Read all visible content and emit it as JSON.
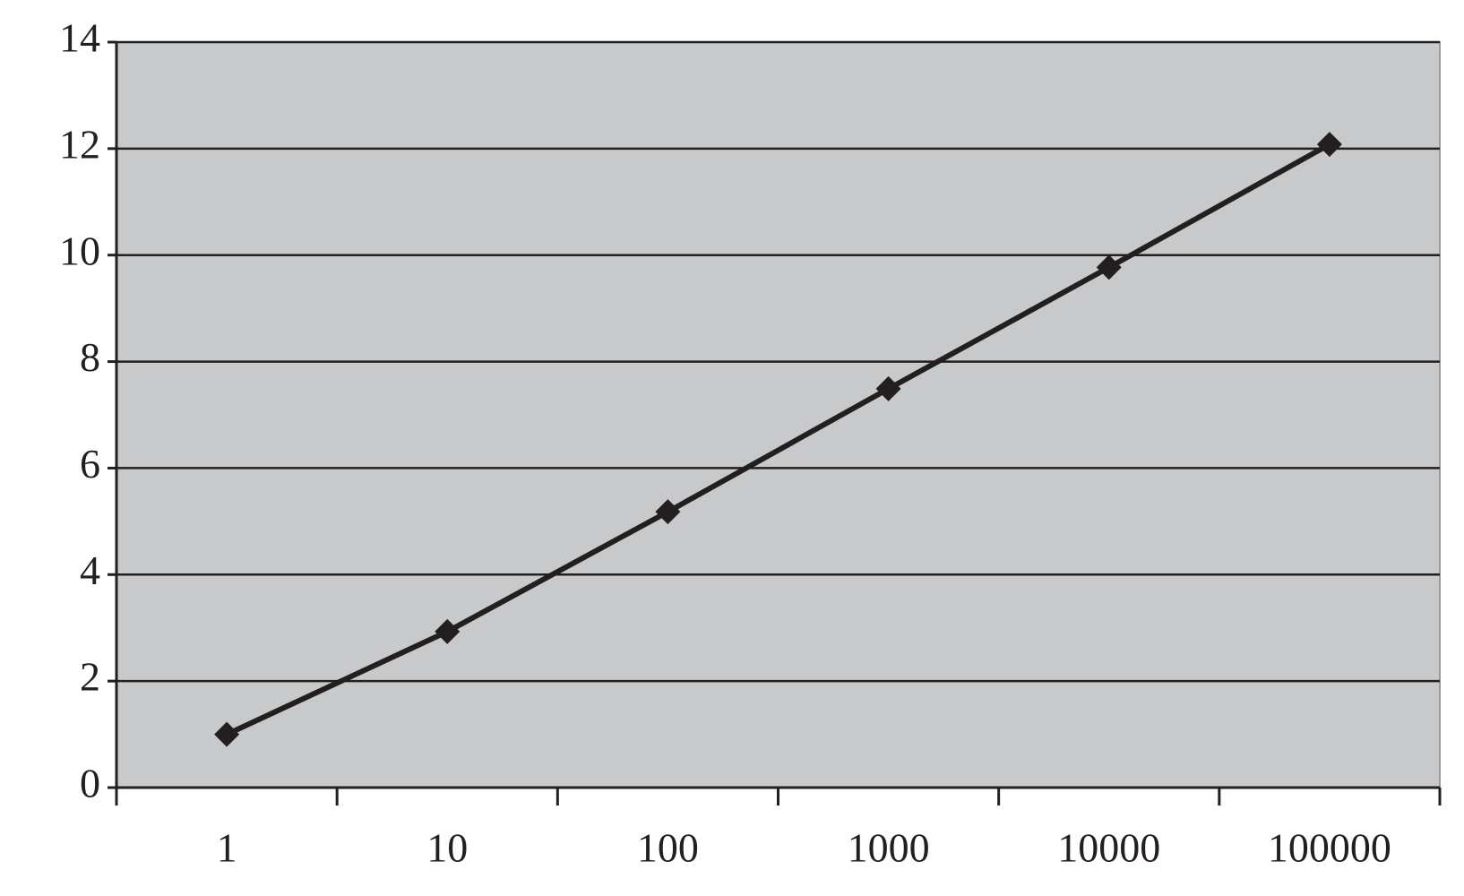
{
  "chart_data": {
    "type": "line",
    "categories": [
      "1",
      "10",
      "100",
      "1000",
      "10000",
      "100000"
    ],
    "values": [
      1.0,
      2.93,
      5.18,
      7.49,
      9.77,
      12.08
    ],
    "color": "#231f20",
    "ylim": [
      0,
      14
    ],
    "yticks": [
      0,
      2,
      4,
      6,
      8,
      10,
      12,
      14
    ],
    "grid": true
  }
}
